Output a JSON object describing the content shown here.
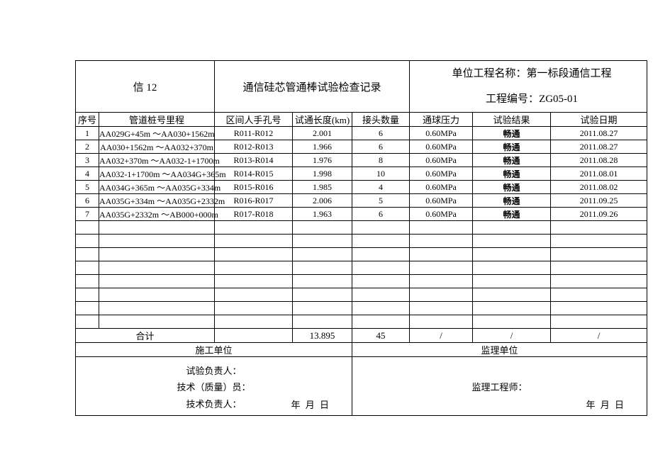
{
  "doc": {
    "code_label": "信 12",
    "title": "通信硅芯管通棒试验检查记录",
    "project_name_label": "单位工程名称：",
    "project_name_value": "第一标段通信工程",
    "project_no_label": "工程编号：",
    "project_no_value": "ZG05-01"
  },
  "headers": {
    "seq": "序号",
    "pipe": "管道桩号里程",
    "hole": "区间人手孔号",
    "len": "试通长度(km)",
    "joint": "接头数量",
    "press": "通球压力",
    "result": "试验结果",
    "date": "试验日期"
  },
  "rows": [
    {
      "seq": "1",
      "pipe": "AA029G+45m ～AA030+1562m",
      "hole": "R011-R012",
      "len": "2.001",
      "joint": "6",
      "press": "0.60MPa",
      "result": "畅通",
      "date": "2011.08.27"
    },
    {
      "seq": "2",
      "pipe": "AA030+1562m ～AA032+370m",
      "hole": "R012-R013",
      "len": "1.966",
      "joint": "6",
      "press": "0.60MPa",
      "result": "畅通",
      "date": "2011.08.27"
    },
    {
      "seq": "3",
      "pipe": "AA032+370m ～AA032-1+1700m",
      "hole": "R013-R014",
      "len": "1.976",
      "joint": "8",
      "press": "0.60MPa",
      "result": "畅通",
      "date": "2011.08.28"
    },
    {
      "seq": "4",
      "pipe": "AA032-1+1700m   ～AA034G+365m",
      "hole": "R014-R015",
      "len": "1.998",
      "joint": "10",
      "press": "0.60MPa",
      "result": "畅通",
      "date": "2011.08.01"
    },
    {
      "seq": "5",
      "pipe": "AA034G+365m ～AA035G+334m",
      "hole": "R015-R016",
      "len": "1.985",
      "joint": "4",
      "press": "0.60MPa",
      "result": "畅通",
      "date": "2011.08.02"
    },
    {
      "seq": "6",
      "pipe": "AA035G+334m ～AA035G+2332m",
      "hole": "R016-R017",
      "len": "2.006",
      "joint": "5",
      "press": "0.60MPa",
      "result": "畅通",
      "date": "2011.09.25"
    },
    {
      "seq": "7",
      "pipe": "AA035G+2332m ～AB000+000m",
      "hole": "R017-R018",
      "len": "1.963",
      "joint": "6",
      "press": "0.60MPa",
      "result": "畅通",
      "date": "2011.09.26"
    }
  ],
  "empty_rows": 8,
  "totals": {
    "label": "合计",
    "len_sum": "13.895",
    "joint_sum": "45",
    "press": "/",
    "result": "/",
    "date": "/"
  },
  "units": {
    "construction": "施工单位",
    "supervision": "监理单位"
  },
  "sign": {
    "const_line1": "试验负责人：",
    "const_line2": "技术（质量）员：",
    "const_line3": "技术负责人：",
    "sup_line1": "监理工程师：",
    "date_txt": "年   月   日"
  }
}
